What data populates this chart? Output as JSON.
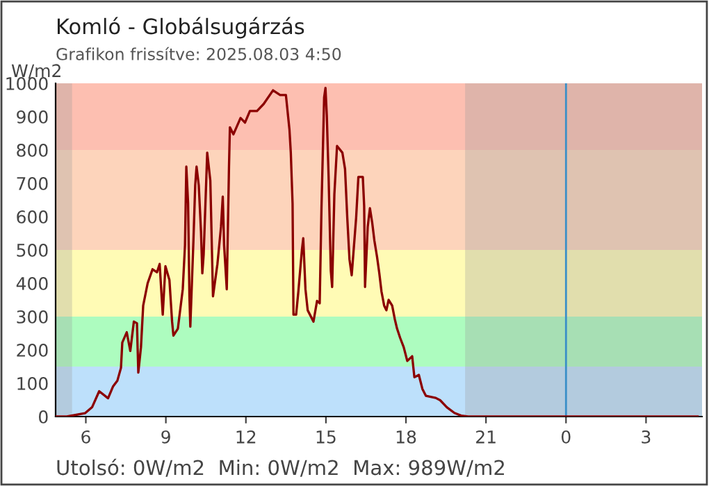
{
  "chart_data": {
    "type": "line",
    "title": "Komló - Globálsugárzás",
    "subtitle": "Grafikon frissítve: 2025.08.03 4:50",
    "ylabel": "W/m2",
    "annotations": [
      "Utolsó: 0W/m2  Min: 0W/m2  Max: 989W/m2"
    ],
    "xlim": [
      "2025-08-02T04:52",
      "2025-08-03T05:06"
    ],
    "ylim": [
      0,
      1000
    ],
    "xticks": [
      {
        "value": "2025-08-02T06:00",
        "label": "6"
      },
      {
        "value": "2025-08-02T09:00",
        "label": "9"
      },
      {
        "value": "2025-08-02T12:00",
        "label": "12"
      },
      {
        "value": "2025-08-02T15:00",
        "label": "15"
      },
      {
        "value": "2025-08-02T18:00",
        "label": "18"
      },
      {
        "value": "2025-08-02T21:00",
        "label": "21"
      },
      {
        "value": "2025-08-03T00:00",
        "label": "0"
      },
      {
        "value": "2025-08-03T03:00",
        "label": "3"
      }
    ],
    "yticks": [
      0,
      100,
      200,
      300,
      400,
      500,
      600,
      700,
      800,
      900,
      1000
    ],
    "grid": false,
    "legend": false,
    "marker": "none",
    "line_style": "solid",
    "bands": [
      {
        "axis": "y",
        "from": 0,
        "to": 150,
        "color": "#bde0fb"
      },
      {
        "axis": "y",
        "from": 150,
        "to": 300,
        "color": "#adfcbf"
      },
      {
        "axis": "y",
        "from": 300,
        "to": 500,
        "color": "#fffbb5"
      },
      {
        "axis": "y",
        "from": 500,
        "to": 800,
        "color": "#fdd4bb"
      },
      {
        "axis": "y",
        "from": 800,
        "to": 1000,
        "color": "#fdbfb1"
      },
      {
        "axis": "x",
        "from": "2025-08-02T04:52",
        "to": "2025-08-02T05:29",
        "color": "#9a9a9a"
      },
      {
        "axis": "x",
        "from": "2025-08-02T20:13",
        "to": "2025-08-03T05:06",
        "color": "#9a9a9a"
      }
    ],
    "ref_lines": [
      {
        "axis": "x",
        "value": "2025-08-03T00:00",
        "color": "#3a8fc8"
      }
    ],
    "series": [
      {
        "color": "#8b0000",
        "x": [
          "2025-08-02T04:53",
          "2025-08-02T05:17",
          "2025-08-02T05:58",
          "2025-08-02T06:14",
          "2025-08-02T06:30",
          "2025-08-02T06:50",
          "2025-08-02T07:01",
          "2025-08-02T07:11",
          "2025-08-02T07:19",
          "2025-08-02T07:22",
          "2025-08-02T07:32",
          "2025-08-02T07:40",
          "2025-08-02T07:48",
          "2025-08-02T07:55",
          "2025-08-02T07:58",
          "2025-08-02T08:04",
          "2025-08-02T08:09",
          "2025-08-02T08:19",
          "2025-08-02T08:30",
          "2025-08-02T08:40",
          "2025-08-02T08:46",
          "2025-08-02T08:53",
          "2025-08-02T08:59",
          "2025-08-02T09:08",
          "2025-08-02T09:14",
          "2025-08-02T09:17",
          "2025-08-02T09:27",
          "2025-08-02T09:38",
          "2025-08-02T09:43",
          "2025-08-02T09:46",
          "2025-08-02T09:50",
          "2025-08-02T09:53",
          "2025-08-02T09:55",
          "2025-08-02T10:02",
          "2025-08-02T10:06",
          "2025-08-02T10:09",
          "2025-08-02T10:14",
          "2025-08-02T10:19",
          "2025-08-02T10:22",
          "2025-08-02T10:25",
          "2025-08-02T10:33",
          "2025-08-02T10:40",
          "2025-08-02T10:46",
          "2025-08-02T10:56",
          "2025-08-02T11:04",
          "2025-08-02T11:08",
          "2025-08-02T11:11",
          "2025-08-02T11:17",
          "2025-08-02T11:22",
          "2025-08-02T11:24",
          "2025-08-02T11:32",
          "2025-08-02T11:48",
          "2025-08-02T11:58",
          "2025-08-02T12:09",
          "2025-08-02T12:25",
          "2025-08-02T12:40",
          "2025-08-02T13:01",
          "2025-08-02T13:17",
          "2025-08-02T13:30",
          "2025-08-02T13:38",
          "2025-08-02T13:41",
          "2025-08-02T13:45",
          "2025-08-02T13:47",
          "2025-08-02T13:53",
          "2025-08-02T13:58",
          "2025-08-02T14:06",
          "2025-08-02T14:09",
          "2025-08-02T14:14",
          "2025-08-02T14:19",
          "2025-08-02T14:32",
          "2025-08-02T14:40",
          "2025-08-02T14:46",
          "2025-08-02T14:50",
          "2025-08-02T14:56",
          "2025-08-02T14:59",
          "2025-08-02T15:02",
          "2025-08-02T15:06",
          "2025-08-02T15:11",
          "2025-08-02T15:14",
          "2025-08-02T15:19",
          "2025-08-02T15:25",
          "2025-08-02T15:37",
          "2025-08-02T15:43",
          "2025-08-02T15:48",
          "2025-08-02T15:53",
          "2025-08-02T15:58",
          "2025-08-02T16:04",
          "2025-08-02T16:08",
          "2025-08-02T16:13",
          "2025-08-02T16:23",
          "2025-08-02T16:26",
          "2025-08-02T16:28",
          "2025-08-02T16:34",
          "2025-08-02T16:39",
          "2025-08-02T16:44",
          "2025-08-02T16:49",
          "2025-08-02T16:55",
          "2025-08-02T17:00",
          "2025-08-02T17:05",
          "2025-08-02T17:11",
          "2025-08-02T17:16",
          "2025-08-02T17:21",
          "2025-08-02T17:29",
          "2025-08-02T17:35",
          "2025-08-02T17:40",
          "2025-08-02T17:47",
          "2025-08-02T17:55",
          "2025-08-02T18:03",
          "2025-08-02T18:14",
          "2025-08-02T18:19",
          "2025-08-02T18:29",
          "2025-08-02T18:37",
          "2025-08-02T18:45",
          "2025-08-02T19:07",
          "2025-08-02T19:17",
          "2025-08-02T19:32",
          "2025-08-02T19:49",
          "2025-08-02T20:04",
          "2025-08-02T20:20",
          "2025-08-03T04:56"
        ],
        "values": [
          0,
          0,
          10,
          28,
          76,
          55,
          90,
          108,
          146,
          222,
          253,
          197,
          285,
          280,
          132,
          208,
          333,
          400,
          442,
          433,
          458,
          306,
          451,
          410,
          285,
          243,
          264,
          382,
          514,
          750,
          640,
          361,
          270,
          528,
          694,
          750,
          694,
          556,
          430,
          486,
          792,
          708,
          361,
          458,
          569,
          660,
          514,
          382,
          750,
          868,
          847,
          896,
          882,
          917,
          917,
          938,
          979,
          965,
          965,
          861,
          792,
          639,
          306,
          306,
          375,
          500,
          535,
          382,
          319,
          285,
          347,
          340,
          625,
          958,
          986,
          903,
          722,
          438,
          389,
          667,
          812,
          792,
          743,
          597,
          472,
          424,
          528,
          597,
          719,
          719,
          632,
          389,
          569,
          625,
          583,
          528,
          479,
          431,
          375,
          333,
          319,
          350,
          333,
          292,
          264,
          236,
          208,
          167,
          181,
          118,
          125,
          83,
          62,
          56,
          49,
          28,
          11,
          3,
          0,
          0
        ]
      }
    ]
  }
}
